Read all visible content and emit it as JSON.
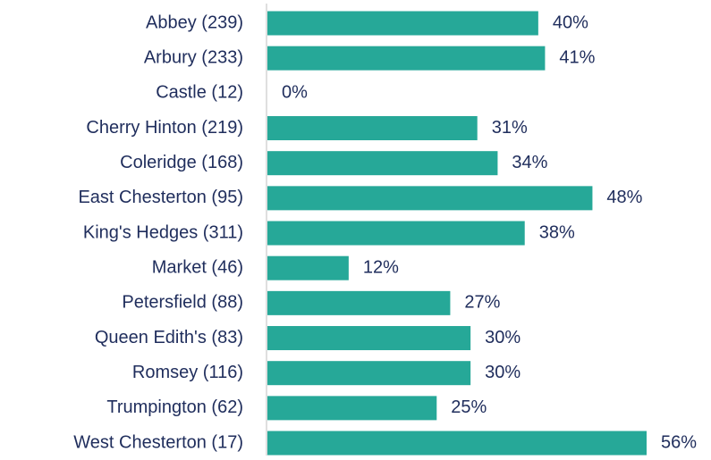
{
  "chart_data": {
    "type": "bar",
    "orientation": "horizontal",
    "categories": [
      "Abbey (239)",
      "Arbury (233)",
      "Castle (12)",
      "Cherry Hinton (219)",
      "Coleridge (168)",
      "East Chesterton (95)",
      "King's Hedges (311)",
      "Market (46)",
      "Petersfield (88)",
      "Queen Edith's (83)",
      "Romsey (116)",
      "Trumpington (62)",
      "West Chesterton (17)"
    ],
    "values": [
      40,
      41,
      0,
      31,
      34,
      48,
      38,
      12,
      27,
      30,
      30,
      25,
      56
    ],
    "value_labels": [
      "40%",
      "41%",
      "0%",
      "31%",
      "34%",
      "48%",
      "38%",
      "12%",
      "27%",
      "30%",
      "30%",
      "25%",
      "56%"
    ],
    "color": "#26a898"
  }
}
